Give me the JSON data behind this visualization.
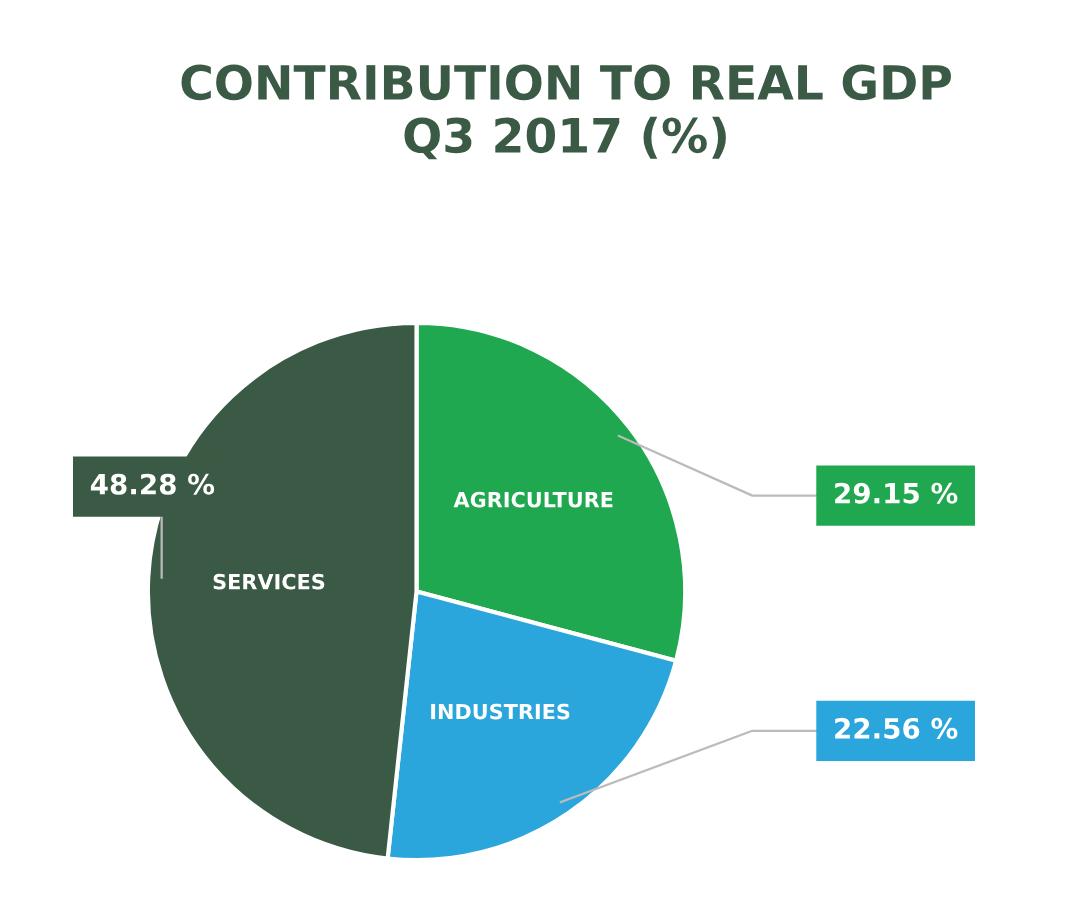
{
  "chart_data": {
    "type": "pie",
    "title": "CONTRIBUTION TO REAL GDP\nQ3 2017 (%)",
    "categories": [
      "AGRICULTURE",
      "INDUSTRIES",
      "SERVICES"
    ],
    "values": [
      29.15,
      22.56,
      48.28
    ],
    "colors": [
      "#1fa84f",
      "#2aa6dc",
      "#3b5a45"
    ],
    "value_labels": [
      "29.15 %",
      "22.56 %",
      "48.28 %"
    ]
  }
}
